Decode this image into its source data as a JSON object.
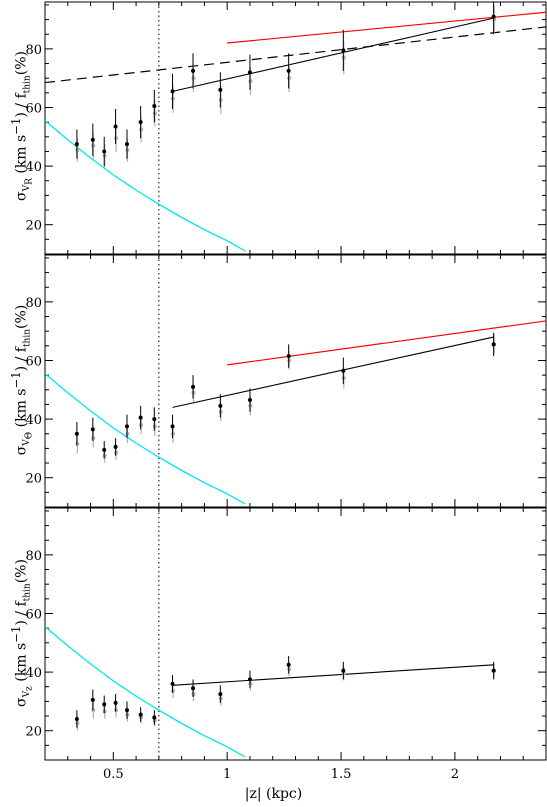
{
  "chart_data": {
    "type": "scatter",
    "xlabel": "|z| (kpc)",
    "xlim": [
      0.2,
      2.4
    ],
    "xticks": [
      "0.5",
      "1",
      "1.5",
      "2"
    ],
    "xtick_values": [
      0.5,
      1.0,
      1.5,
      2.0
    ],
    "vline_x": 0.7,
    "panels": [
      {
        "ylabel": {
          "sym": "σ",
          "sub": "V",
          "subsub": "R",
          "rest": " (km s",
          "sup": "−1",
          "rest2": ") / f",
          "sub2": "thin",
          "rest3": "(%)"
        },
        "ylim": [
          10,
          96
        ],
        "yticks": [
          20,
          40,
          60,
          80
        ],
        "points": [
          {
            "x": 0.34,
            "y": 47.5,
            "err": 5.0,
            "y_gray": 45.5
          },
          {
            "x": 0.41,
            "y": 49.0,
            "err": 5.5,
            "y_gray": 47.0
          },
          {
            "x": 0.46,
            "y": 45.0,
            "err": 5.0,
            "y_gray": 43.5
          },
          {
            "x": 0.51,
            "y": 53.5,
            "err": 6.0,
            "y_gray": 49.5
          },
          {
            "x": 0.56,
            "y": 47.5,
            "err": 5.0,
            "y_gray": 45.5
          },
          {
            "x": 0.62,
            "y": 55.0,
            "err": 5.5,
            "y_gray": 52.5
          },
          {
            "x": 0.68,
            "y": 60.5,
            "err": 5.5,
            "y_gray": 58.0
          },
          {
            "x": 0.76,
            "y": 65.5,
            "err": 6.0,
            "y_gray": 63.0
          },
          {
            "x": 0.85,
            "y": 72.5,
            "err": 6.0,
            "y_gray": 70.0
          },
          {
            "x": 0.97,
            "y": 66.0,
            "err": 6.0,
            "y_gray": 62.5
          },
          {
            "x": 1.1,
            "y": 72.0,
            "err": 6.0,
            "y_gray": 69.0
          },
          {
            "x": 1.27,
            "y": 72.5,
            "err": 6.0,
            "y_gray": 70.0
          },
          {
            "x": 1.51,
            "y": 79.5,
            "err": 7.0,
            "y_gray": 77.0
          },
          {
            "x": 2.17,
            "y": 91.0,
            "err": 6.0,
            "y_gray": 90.0
          }
        ],
        "fit_line": {
          "x": [
            0.76,
            2.17
          ],
          "y": [
            65.5,
            90.5
          ]
        },
        "red_line": {
          "x": [
            1.0,
            2.4
          ],
          "y": [
            82.0,
            92.5
          ]
        },
        "dashed_line": {
          "x": [
            0.2,
            2.4
          ],
          "y": [
            68.5,
            87.5
          ]
        },
        "cyan_curve": {
          "x": [
            0.2,
            0.3,
            0.4,
            0.5,
            0.6,
            0.7,
            0.8,
            0.9,
            1.0,
            1.08
          ],
          "y": [
            55.5,
            49.0,
            42.8,
            37.0,
            31.8,
            27.0,
            22.5,
            18.3,
            14.5,
            11.0
          ]
        }
      },
      {
        "ylabel": {
          "sym": "σ",
          "sub": "V",
          "subsub": "Θ",
          "rest": " (km s",
          "sup": "−1",
          "rest2": ") / f",
          "sub2": "thin",
          "rest3": "(%)"
        },
        "ylim": [
          10,
          96
        ],
        "yticks": [
          20,
          40,
          60,
          80
        ],
        "points": [
          {
            "x": 0.34,
            "y": 35.0,
            "err": 4.0,
            "y_gray": 31.5
          },
          {
            "x": 0.41,
            "y": 36.5,
            "err": 4.0,
            "y_gray": 33.5
          },
          {
            "x": 0.46,
            "y": 29.5,
            "err": 3.0,
            "y_gray": 27.5
          },
          {
            "x": 0.51,
            "y": 30.5,
            "err": 3.0,
            "y_gray": 28.5
          },
          {
            "x": 0.56,
            "y": 37.5,
            "err": 4.0,
            "y_gray": 35.0
          },
          {
            "x": 0.62,
            "y": 40.5,
            "err": 4.0,
            "y_gray": 38.0
          },
          {
            "x": 0.68,
            "y": 40.0,
            "err": 4.0,
            "y_gray": 37.5
          },
          {
            "x": 0.76,
            "y": 37.5,
            "err": 4.0,
            "y_gray": 35.0
          },
          {
            "x": 0.85,
            "y": 51.0,
            "err": 4.0,
            "y_gray": 49.0
          },
          {
            "x": 0.97,
            "y": 44.5,
            "err": 4.0,
            "y_gray": 42.5
          },
          {
            "x": 1.1,
            "y": 46.5,
            "err": 4.0,
            "y_gray": 44.5
          },
          {
            "x": 1.27,
            "y": 61.5,
            "err": 4.0,
            "y_gray": 60.0
          },
          {
            "x": 1.51,
            "y": 56.5,
            "err": 4.5,
            "y_gray": 54.0
          },
          {
            "x": 2.17,
            "y": 65.5,
            "err": 4.0,
            "y_gray": 65.5
          }
        ],
        "fit_line": {
          "x": [
            0.76,
            2.17
          ],
          "y": [
            44.0,
            68.0
          ]
        },
        "red_line": {
          "x": [
            1.0,
            2.4
          ],
          "y": [
            58.5,
            73.5
          ]
        },
        "cyan_curve": {
          "x": [
            0.2,
            0.3,
            0.4,
            0.5,
            0.6,
            0.7,
            0.8,
            0.9,
            1.0,
            1.08
          ],
          "y": [
            55.5,
            49.0,
            42.8,
            37.0,
            31.8,
            27.0,
            22.5,
            18.3,
            14.5,
            11.0
          ]
        }
      },
      {
        "ylabel": {
          "sym": "σ",
          "sub": "V",
          "subsub": "z",
          "rest": " (km s",
          "sup": "−1",
          "rest2": ") / f",
          "sub2": "thin",
          "rest3": "(%)"
        },
        "ylim": [
          10,
          96
        ],
        "yticks": [
          20,
          40,
          60,
          80
        ],
        "points": [
          {
            "x": 0.34,
            "y": 24.0,
            "err": 3.0,
            "y_gray": 22.5
          },
          {
            "x": 0.41,
            "y": 30.5,
            "err": 3.5,
            "y_gray": 27.0
          },
          {
            "x": 0.46,
            "y": 29.0,
            "err": 3.0,
            "y_gray": 26.5
          },
          {
            "x": 0.51,
            "y": 29.5,
            "err": 3.0,
            "y_gray": 27.0
          },
          {
            "x": 0.56,
            "y": 27.0,
            "err": 3.0,
            "y_gray": 25.5
          },
          {
            "x": 0.62,
            "y": 25.5,
            "err": 2.5,
            "y_gray": 24.5
          },
          {
            "x": 0.68,
            "y": 24.5,
            "err": 2.5,
            "y_gray": 23.5
          },
          {
            "x": 0.76,
            "y": 36.0,
            "err": 3.0,
            "y_gray": 33.5
          },
          {
            "x": 0.85,
            "y": 34.5,
            "err": 3.0,
            "y_gray": 32.5
          },
          {
            "x": 0.97,
            "y": 32.5,
            "err": 3.0,
            "y_gray": 31.0
          },
          {
            "x": 1.1,
            "y": 37.5,
            "err": 3.0,
            "y_gray": 36.0
          },
          {
            "x": 1.27,
            "y": 42.5,
            "err": 3.0,
            "y_gray": 41.0
          },
          {
            "x": 1.51,
            "y": 40.5,
            "err": 3.0,
            "y_gray": 39.5
          },
          {
            "x": 2.17,
            "y": 40.5,
            "err": 3.0,
            "y_gray": 40.5
          }
        ],
        "fit_line": {
          "x": [
            0.76,
            2.17
          ],
          "y": [
            35.5,
            42.5
          ]
        },
        "cyan_curve": {
          "x": [
            0.2,
            0.3,
            0.4,
            0.5,
            0.6,
            0.7,
            0.8,
            0.9,
            1.0,
            1.08
          ],
          "y": [
            55.5,
            49.0,
            42.8,
            37.0,
            31.8,
            27.0,
            22.5,
            18.3,
            14.5,
            11.0
          ]
        }
      }
    ],
    "colors": {
      "points": "#000000",
      "points_gray": "#b0b0b0",
      "fit": "#000000",
      "red": "#ff0000",
      "cyan": "#00e5ee",
      "dashed": "#000000"
    }
  }
}
